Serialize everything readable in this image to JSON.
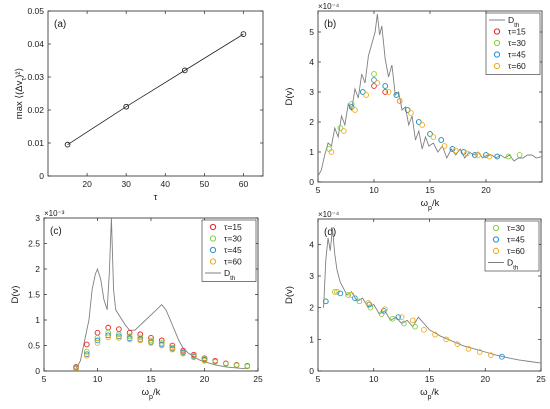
{
  "chart_data": [
    {
      "type": "line",
      "panel_label": "(a)",
      "xlabel": "τ",
      "ylabel": "max ⟨(Δv_τ)²⟩",
      "xlim": [
        10,
        65
      ],
      "ylim": [
        0,
        0.05
      ],
      "xticks": [
        20,
        30,
        40,
        50,
        60
      ],
      "yticks": [
        0,
        0.01,
        0.02,
        0.03,
        0.04,
        0.05
      ],
      "ytick_labels": [
        "0",
        "0.01",
        "0.02",
        "0.03",
        "0.04",
        "0.05"
      ],
      "series": [
        {
          "x": [
            15,
            30,
            45,
            60
          ],
          "y": [
            0.0095,
            0.021,
            0.032,
            0.043
          ],
          "color": "#222222",
          "marker": "circle-open"
        }
      ]
    },
    {
      "type": "line",
      "panel_label": "(b)",
      "xlabel": "ω_p/k",
      "ylabel": "D(v)",
      "exponent_label": "×10⁻⁴",
      "xlim": [
        5,
        25
      ],
      "ylim": [
        0,
        5.7
      ],
      "xticks": [
        5,
        10,
        15,
        20
      ],
      "yticks": [
        0,
        1,
        2,
        3,
        4,
        5
      ],
      "ytick_labels": [
        "0",
        "1",
        "2",
        "3",
        "4",
        "5"
      ],
      "legend_position": "top-right",
      "legend": [
        "D_th",
        "τ=15",
        "τ=30",
        "τ=45",
        "τ=60"
      ],
      "series": [
        {
          "name": "D_th",
          "kind": "line",
          "color": "#808080",
          "x": [
            5,
            5.3,
            5.6,
            5.9,
            6.2,
            6.5,
            6.8,
            7.1,
            7.4,
            7.7,
            8.0,
            8.3,
            8.6,
            8.9,
            9.2,
            9.5,
            9.8,
            10.1,
            10.3,
            10.5,
            10.7,
            11.0,
            11.3,
            11.6,
            11.9,
            12.2,
            12.5,
            12.8,
            13.1,
            13.4,
            13.7,
            14.0,
            14.3,
            14.6,
            14.9,
            15.3,
            15.7,
            16.1,
            16.5,
            16.9,
            17.3,
            17.7,
            18.1,
            18.5,
            18.9,
            19.3,
            19.7,
            20.1,
            20.5,
            20.9,
            21.3,
            21.7,
            22.1,
            22.5,
            22.9,
            23.3,
            23.7,
            24.1,
            24.5,
            25
          ],
          "y": [
            0.2,
            0.4,
            0.9,
            1.3,
            1.2,
            1.8,
            1.5,
            2.2,
            1.9,
            2.6,
            2.4,
            3.1,
            2.8,
            3.6,
            3.3,
            4.2,
            4.6,
            5.0,
            5.6,
            4.9,
            5.2,
            4.1,
            3.5,
            3.9,
            2.9,
            3.0,
            2.4,
            2.5,
            1.9,
            2.2,
            1.4,
            1.7,
            1.1,
            1.5,
            1.2,
            1.3,
            1.0,
            1.2,
            0.8,
            1.1,
            0.9,
            1.1,
            0.8,
            1.0,
            0.9,
            1.0,
            0.8,
            0.9,
            0.9,
            0.8,
            0.9,
            0.8,
            0.9,
            0.7,
            0.8,
            0.8,
            0.9,
            0.9,
            0.8,
            0.85
          ]
        },
        {
          "name": "τ=15",
          "kind": "markers",
          "color": "#e8201f",
          "x": [
            10.0,
            11.0,
            12.3
          ],
          "y": [
            3.2,
            3.0,
            2.7
          ]
        },
        {
          "name": "τ=30",
          "kind": "markers",
          "color": "#7fd13a",
          "x": [
            6.0,
            7.0,
            8.0,
            9.0,
            10.0,
            11.0,
            12.0,
            13.0,
            14.0,
            15.0,
            16.0,
            17.0,
            18.0,
            19.0,
            20.0,
            21.0,
            22.0,
            23.0
          ],
          "y": [
            1.1,
            1.8,
            2.6,
            3.0,
            3.6,
            3.2,
            2.9,
            2.4,
            2.0,
            1.6,
            1.4,
            1.1,
            1.0,
            0.9,
            0.9,
            0.85,
            0.85,
            0.9
          ]
        },
        {
          "name": "τ=45",
          "kind": "markers",
          "color": "#1f8fd6",
          "x": [
            8.0,
            9.0,
            10.0,
            11.0,
            12.0,
            13.0,
            14.0,
            15.0,
            16.0,
            17.0,
            18.0,
            19.0,
            20.0,
            21.0
          ],
          "y": [
            2.5,
            3.0,
            3.4,
            3.2,
            2.9,
            2.4,
            2.0,
            1.6,
            1.4,
            1.1,
            1.0,
            0.9,
            0.9,
            0.85
          ]
        },
        {
          "name": "τ=60",
          "kind": "markers",
          "color": "#f2a91a",
          "x": [
            6.2,
            7.3,
            8.3,
            9.3,
            10.3,
            11.3,
            12.3,
            13.3,
            14.3,
            15.3,
            16.3,
            17.3,
            18.3,
            19.3,
            20.3
          ],
          "y": [
            1.0,
            1.7,
            2.4,
            2.9,
            3.3,
            3.0,
            2.7,
            2.3,
            1.9,
            1.5,
            1.2,
            1.05,
            0.95,
            0.9,
            0.85
          ]
        }
      ]
    },
    {
      "type": "line",
      "panel_label": "(c)",
      "xlabel": "ω_p/k",
      "ylabel": "D(v)",
      "exponent_label": "×10⁻³",
      "xlim": [
        5,
        25
      ],
      "ylim": [
        0,
        3
      ],
      "xticks": [
        5,
        10,
        15,
        20,
        25
      ],
      "yticks": [
        0,
        0.5,
        1,
        1.5,
        2,
        2.5,
        3
      ],
      "ytick_labels": [
        "0",
        "0.5",
        "1",
        "1.5",
        "2",
        "2.5",
        "3"
      ],
      "legend_position": "top-right",
      "legend": [
        "τ=15",
        "τ=30",
        "τ=45",
        "τ=60",
        "D_th"
      ],
      "series": [
        {
          "name": "D_th",
          "kind": "line",
          "color": "#808080",
          "x": [
            8,
            8.4,
            8.8,
            9.2,
            9.5,
            9.8,
            10.0,
            10.3,
            10.6,
            10.9,
            11.1,
            11.3,
            11.5,
            11.7,
            12.0,
            12.3,
            12.6,
            13.0,
            13.5,
            14.0,
            14.5,
            15.0,
            15.5,
            16.0,
            16.4,
            16.8,
            17.2,
            17.6,
            18.0,
            18.5,
            19.0,
            19.5,
            20.0,
            20.5,
            21.0,
            21.5,
            22.0,
            22.5,
            23.0,
            23.5,
            24.0
          ],
          "y": [
            0.05,
            0.2,
            0.6,
            1.0,
            1.6,
            1.9,
            2.0,
            1.8,
            1.4,
            1.2,
            1.9,
            3.0,
            1.6,
            1.2,
            1.1,
            1.0,
            0.9,
            0.8,
            0.8,
            0.9,
            1.0,
            1.1,
            1.2,
            1.3,
            1.2,
            1.0,
            0.8,
            0.6,
            0.45,
            0.35,
            0.28,
            0.22,
            0.18,
            0.15,
            0.12,
            0.1,
            0.08,
            0.07,
            0.06,
            0.05,
            0.05
          ]
        },
        {
          "name": "τ=15",
          "kind": "markers",
          "color": "#e8201f",
          "x": [
            8.0,
            9.0,
            10.0,
            11.0,
            12.0,
            13.0,
            14.0,
            15.0,
            16.0,
            17.0,
            18.0,
            19.0,
            20.0,
            21.0,
            22.0,
            23.0,
            24.0
          ],
          "y": [
            0.08,
            0.52,
            0.75,
            0.85,
            0.82,
            0.75,
            0.72,
            0.65,
            0.6,
            0.5,
            0.4,
            0.32,
            0.25,
            0.2,
            0.15,
            0.12,
            0.1
          ]
        },
        {
          "name": "τ=30",
          "kind": "markers",
          "color": "#7fd13a",
          "x": [
            8.0,
            9.0,
            10.0,
            11.0,
            12.0,
            13.0,
            14.0,
            15.0,
            16.0,
            17.0,
            18.0,
            19.0,
            20.0,
            21.0,
            22.0,
            23.0,
            24.0
          ],
          "y": [
            0.06,
            0.38,
            0.65,
            0.75,
            0.72,
            0.68,
            0.66,
            0.6,
            0.55,
            0.46,
            0.38,
            0.3,
            0.24,
            0.18,
            0.14,
            0.11,
            0.09
          ]
        },
        {
          "name": "τ=45",
          "kind": "markers",
          "color": "#1f8fd6",
          "x": [
            8.0,
            9.0,
            10.0,
            11.0,
            12.0,
            13.0,
            14.0,
            15.0,
            16.0,
            17.0,
            18.0,
            19.0,
            20.0
          ],
          "y": [
            0.05,
            0.33,
            0.6,
            0.7,
            0.68,
            0.64,
            0.62,
            0.57,
            0.52,
            0.44,
            0.36,
            0.28,
            0.22
          ]
        },
        {
          "name": "τ=60",
          "kind": "markers",
          "color": "#f2a91a",
          "x": [
            8.0,
            9.0,
            10.0,
            11.0,
            12.0,
            13.0,
            14.0,
            15.0,
            16.0,
            17.0,
            18.0,
            19.0,
            20.0
          ],
          "y": [
            0.04,
            0.3,
            0.55,
            0.66,
            0.65,
            0.62,
            0.6,
            0.55,
            0.5,
            0.42,
            0.34,
            0.27,
            0.2
          ]
        }
      ]
    },
    {
      "type": "line",
      "panel_label": "(d)",
      "xlabel": "ω_p/k",
      "ylabel": "D(v)",
      "exponent_label": "×10⁻⁴",
      "xlim": [
        5,
        25
      ],
      "ylim": [
        0,
        4.8
      ],
      "xticks": [
        5,
        10,
        15,
        20,
        25
      ],
      "yticks": [
        0,
        1,
        2,
        3,
        4
      ],
      "ytick_labels": [
        "0",
        "1",
        "2",
        "3",
        "4"
      ],
      "legend_position": "top-right",
      "legend": [
        "τ=30",
        "τ=45",
        "τ=60",
        "D_th"
      ],
      "series": [
        {
          "name": "D_th",
          "kind": "line",
          "color": "#808080",
          "x": [
            5.5,
            5.7,
            5.9,
            6.1,
            6.3,
            6.5,
            6.7,
            7.0,
            7.3,
            7.6,
            8.0,
            8.5,
            9.0,
            9.5,
            10.0,
            10.5,
            11.0,
            11.5,
            12.0,
            12.5,
            13.0,
            13.5,
            14.0,
            14.5,
            15.0,
            16.0,
            17.0,
            18.0,
            19.0,
            20.0,
            21.0,
            22.0,
            23.0,
            24.0,
            25.0
          ],
          "y": [
            2.0,
            3.5,
            4.2,
            3.8,
            4.5,
            3.7,
            3.2,
            2.8,
            2.6,
            2.4,
            2.5,
            2.2,
            2.3,
            2.0,
            2.1,
            1.8,
            1.9,
            1.6,
            1.7,
            1.5,
            1.6,
            1.4,
            1.7,
            1.5,
            1.3,
            1.1,
            0.95,
            0.8,
            0.7,
            0.6,
            0.5,
            0.42,
            0.35,
            0.3,
            0.25
          ]
        },
        {
          "name": "τ=30",
          "kind": "markers",
          "color": "#7fd13a",
          "x": [
            5.7,
            6.7,
            7.7,
            8.7,
            9.7,
            10.7,
            11.7,
            12.7,
            13.7
          ],
          "y": [
            2.2,
            2.5,
            2.4,
            2.2,
            2.0,
            1.8,
            1.65,
            1.5,
            1.4
          ]
        },
        {
          "name": "τ=45",
          "kind": "markers",
          "color": "#1f8fd6",
          "x": [
            5.7,
            7.0,
            8.3,
            9.6,
            10.9,
            12.2,
            21.5
          ],
          "y": [
            2.2,
            2.45,
            2.3,
            2.1,
            1.9,
            1.7,
            0.45
          ]
        },
        {
          "name": "τ=60",
          "kind": "markers",
          "color": "#f2a91a",
          "x": [
            6.5,
            8.0,
            9.5,
            11.0,
            12.5,
            13.5,
            14.5,
            15.5,
            16.5,
            17.5,
            18.5,
            19.5,
            20.5
          ],
          "y": [
            2.5,
            2.4,
            2.15,
            1.95,
            1.7,
            1.6,
            1.3,
            1.15,
            1.0,
            0.85,
            0.7,
            0.6,
            0.5
          ]
        }
      ]
    }
  ]
}
